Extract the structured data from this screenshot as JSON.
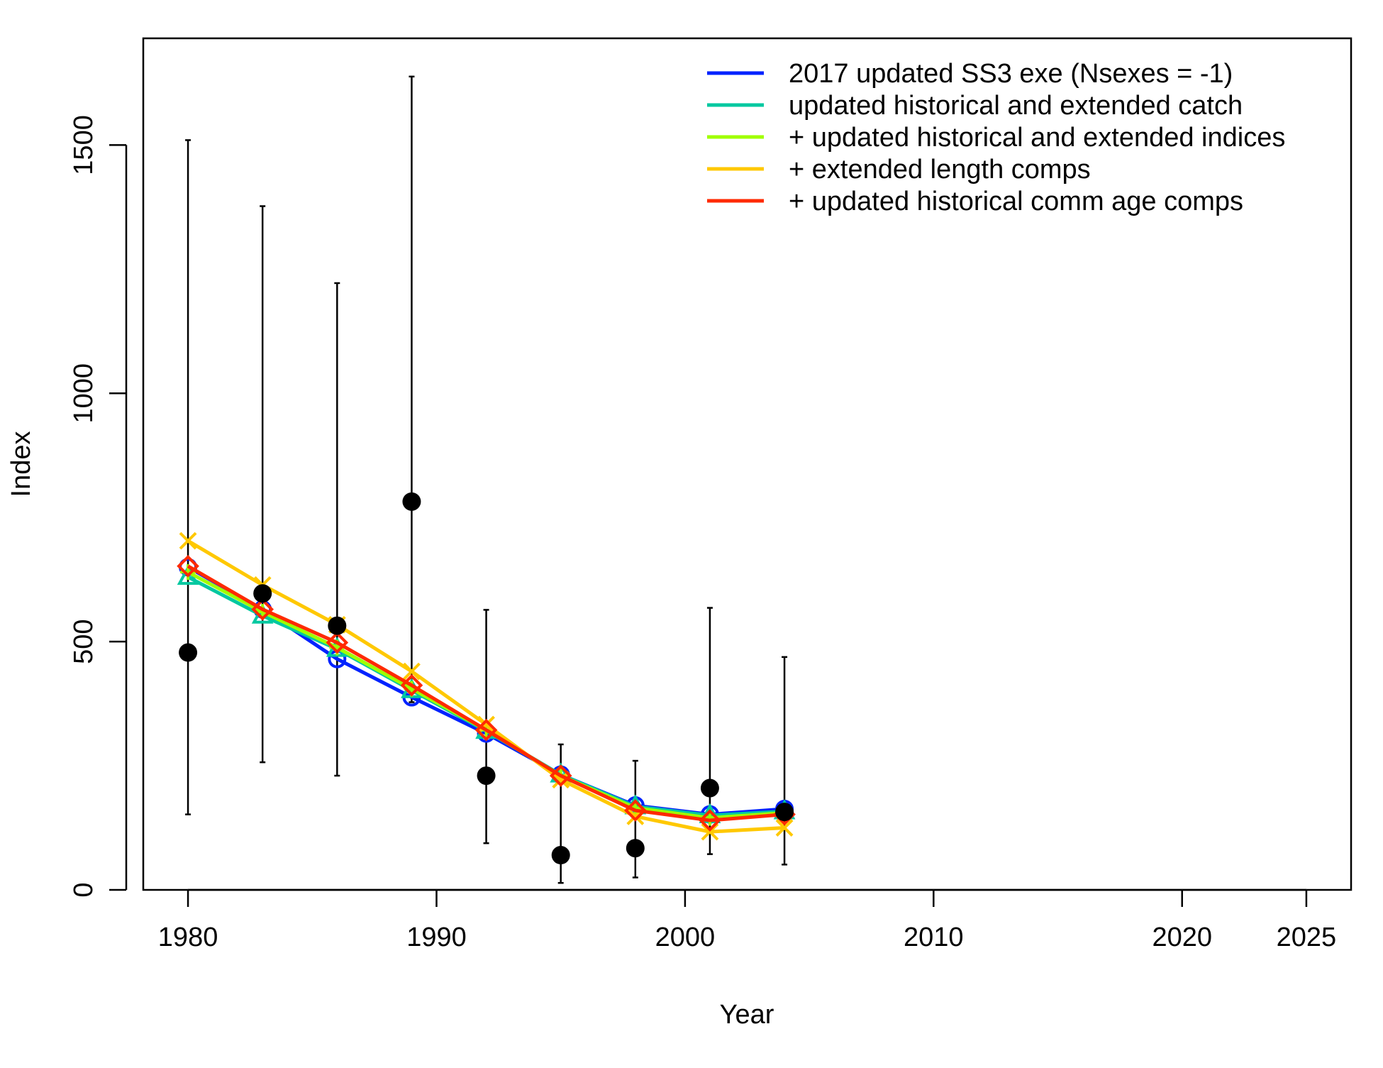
{
  "chart_data": {
    "type": "line",
    "xlabel": "Year",
    "ylabel": "Index",
    "xlim": [
      1978.2,
      2026.8
    ],
    "ylim": [
      0,
      1715
    ],
    "x_ticks": [
      1980,
      1990,
      2000,
      2010,
      2020,
      2025
    ],
    "x_tick_labels": [
      "1980",
      "1990",
      "2000",
      "2010",
      "2020",
      "2025"
    ],
    "y_ticks": [
      0,
      500,
      1000,
      1500
    ],
    "y_tick_labels": [
      "0",
      "500",
      "1000",
      "1500"
    ],
    "grid": false,
    "legend_position": "top-right",
    "x": [
      1980,
      1983,
      1986,
      1989,
      1992,
      1995,
      1998,
      2001,
      2004
    ],
    "series": [
      {
        "name": "2017 updated SS3 exe (Nsexes = -1)",
        "color": "#0022ff",
        "marker": "circle",
        "values": [
          650,
          565,
          465,
          388,
          315,
          232,
          170,
          152,
          163
        ]
      },
      {
        "name": "updated historical and extended catch",
        "color": "#00c8a0",
        "marker": "triangle",
        "values": [
          630,
          552,
          485,
          402,
          320,
          232,
          168,
          150,
          158
        ]
      },
      {
        "name": "+ updated historical and extended indices",
        "color": "#a0ff00",
        "marker": "plus",
        "values": [
          640,
          560,
          488,
          405,
          322,
          230,
          165,
          145,
          155
        ]
      },
      {
        "name": "+ extended length comps",
        "color": "#ffc800",
        "marker": "x",
        "values": [
          703,
          614,
          534,
          440,
          333,
          222,
          148,
          117,
          125
        ]
      },
      {
        "name": "+ updated historical comm age comps",
        "color": "#ff2a00",
        "marker": "diamond",
        "values": [
          652,
          565,
          498,
          412,
          322,
          230,
          160,
          140,
          152
        ]
      }
    ],
    "observations": {
      "x": [
        1980,
        1983,
        1986,
        1989,
        1992,
        1995,
        1998,
        2001,
        2004
      ],
      "values": [
        478,
        597,
        532,
        782,
        230,
        70,
        84,
        205,
        157
      ],
      "lower": [
        152,
        257,
        230,
        378,
        94,
        14,
        25,
        72,
        51
      ],
      "upper": [
        1510,
        1377,
        1222,
        1638,
        564,
        293,
        260,
        568,
        469
      ],
      "color": "#000000"
    }
  }
}
